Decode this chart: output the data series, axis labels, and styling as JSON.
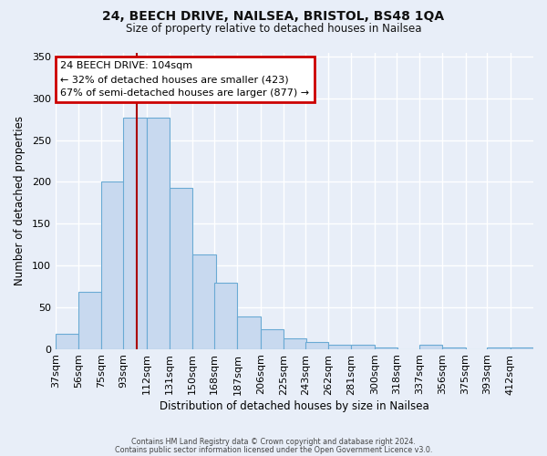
{
  "title": "24, BEECH DRIVE, NAILSEA, BRISTOL, BS48 1QA",
  "subtitle": "Size of property relative to detached houses in Nailsea",
  "xlabel": "Distribution of detached houses by size in Nailsea",
  "ylabel": "Number of detached properties",
  "bar_color": "#c8d9ef",
  "bar_edge_color": "#6aaad4",
  "background_color": "#e8eef8",
  "grid_color": "#ffffff",
  "bins": [
    37,
    56,
    75,
    93,
    112,
    131,
    150,
    168,
    187,
    206,
    225,
    243,
    262,
    281,
    300,
    318,
    337,
    356,
    375,
    393,
    412
  ],
  "counts": [
    18,
    68,
    200,
    277,
    277,
    193,
    113,
    79,
    39,
    24,
    13,
    8,
    5,
    5,
    2,
    0,
    5,
    2,
    0,
    2,
    2
  ],
  "ylim": [
    0,
    355
  ],
  "yticks": [
    0,
    50,
    100,
    150,
    200,
    250,
    300,
    350
  ],
  "property_size": 104,
  "red_line_color": "#aa0000",
  "annotation_title": "24 BEECH DRIVE: 104sqm",
  "annotation_line2": "← 32% of detached houses are smaller (423)",
  "annotation_line3": "67% of semi-detached houses are larger (877) →",
  "annotation_box_color": "#ffffff",
  "annotation_box_edge_color": "#cc0000",
  "footer_line1": "Contains HM Land Registry data © Crown copyright and database right 2024.",
  "footer_line2": "Contains public sector information licensed under the Open Government Licence v3.0.",
  "tick_labels": [
    "37sqm",
    "56sqm",
    "75sqm",
    "93sqm",
    "112sqm",
    "131sqm",
    "150sqm",
    "168sqm",
    "187sqm",
    "206sqm",
    "225sqm",
    "243sqm",
    "262sqm",
    "281sqm",
    "300sqm",
    "318sqm",
    "337sqm",
    "356sqm",
    "375sqm",
    "393sqm",
    "412sqm"
  ]
}
